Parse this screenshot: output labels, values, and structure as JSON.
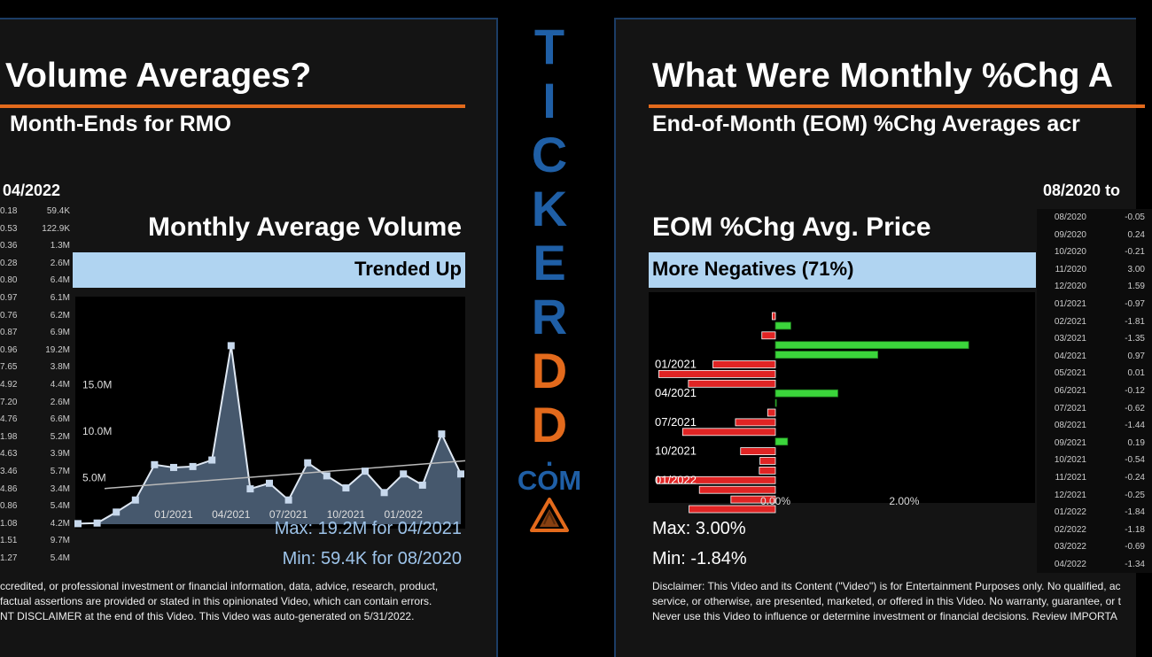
{
  "left": {
    "title": "Volume Averages?",
    "subtitle": "Month-Ends for RMO",
    "range_label": "04/2022",
    "chart_title": "Monthly Average Volume",
    "band_label": "Trended Up",
    "max_text": "Max: 19.2M for 04/2021",
    "min_text": "Min: 59.4K for 08/2020",
    "table": [
      [
        "0.18",
        "59.4K"
      ],
      [
        "0.53",
        "122.9K"
      ],
      [
        "0.36",
        "1.3M"
      ],
      [
        "0.28",
        "2.6M"
      ],
      [
        "0.80",
        "6.4M"
      ],
      [
        "0.97",
        "6.1M"
      ],
      [
        "0.76",
        "6.2M"
      ],
      [
        "0.87",
        "6.9M"
      ],
      [
        "0.96",
        "19.2M"
      ],
      [
        "7.65",
        "3.8M"
      ],
      [
        "4.92",
        "4.4M"
      ],
      [
        "7.20",
        "2.6M"
      ],
      [
        "4.76",
        "6.6M"
      ],
      [
        "1.98",
        "5.2M"
      ],
      [
        "4.63",
        "3.9M"
      ],
      [
        "3.46",
        "5.7M"
      ],
      [
        "4.86",
        "3.4M"
      ],
      [
        "0.86",
        "5.4M"
      ],
      [
        "1.08",
        "4.2M"
      ],
      [
        "1.51",
        "9.7M"
      ],
      [
        "1.27",
        "5.4M"
      ]
    ],
    "disclaimer": [
      "ccredited, or professional investment or financial information, data, advice, research, product,",
      "factual assertions are provided or stated in this opinionated Video, which can contain errors.",
      "NT DISCLAIMER at the end of this Video. This Video was auto-generated on 5/31/2022."
    ]
  },
  "right": {
    "title": "What Were Monthly %Chg A",
    "subtitle": "End-of-Month (EOM) %Chg Averages acr",
    "range_label": "08/2020 to",
    "chart_title": "EOM %Chg Avg. Price",
    "band_label": "More Negatives (71%)",
    "max_text": "Max: 3.00%",
    "min_text": "Min: -1.84%",
    "table": [
      [
        "08/2020",
        "-0.05"
      ],
      [
        "09/2020",
        "0.24"
      ],
      [
        "10/2020",
        "-0.21"
      ],
      [
        "11/2020",
        "3.00"
      ],
      [
        "12/2020",
        "1.59"
      ],
      [
        "01/2021",
        "-0.97"
      ],
      [
        "02/2021",
        "-1.81"
      ],
      [
        "03/2021",
        "-1.35"
      ],
      [
        "04/2021",
        "0.97"
      ],
      [
        "05/2021",
        "0.01"
      ],
      [
        "06/2021",
        "-0.12"
      ],
      [
        "07/2021",
        "-0.62"
      ],
      [
        "08/2021",
        "-1.44"
      ],
      [
        "09/2021",
        "0.19"
      ],
      [
        "10/2021",
        "-0.54"
      ],
      [
        "11/2021",
        "-0.24"
      ],
      [
        "12/2021",
        "-0.25"
      ],
      [
        "01/2022",
        "-1.84"
      ],
      [
        "02/2022",
        "-1.18"
      ],
      [
        "03/2022",
        "-0.69"
      ],
      [
        "04/2022",
        "-1.34"
      ]
    ],
    "disclaimer": [
      "Disclaimer: This Video and its Content (\"Video\") is for Entertainment Purposes only. No qualified, ac",
      "service, or otherwise, are presented, marketed, or offered in this Video. No warranty, guarantee, or t",
      "Never use this Video to influence or determine investment or financial decisions. Review IMPORTA"
    ]
  },
  "brand": {
    "letters": [
      "T",
      "I",
      "C",
      "K",
      "E",
      "R",
      "D",
      "D"
    ],
    "letter_colors": [
      "#1f5fa6",
      "#1f5fa6",
      "#1f5fa6",
      "#1f5fa6",
      "#1f5fa6",
      "#1f5fa6",
      "#e36a1c",
      "#e36a1c"
    ],
    "dot": ".",
    "com": "COM",
    "logo_icon": "warning-triangle-icon"
  },
  "colors": {
    "accent_orange": "#e36a1c",
    "brand_blue": "#1f5fa6",
    "band_blue": "#b0d4f1",
    "positive_bar": "#3bd53b",
    "negative_bar": "#e02424",
    "stat_text": "#9ec4ea"
  },
  "chart_data": [
    {
      "type": "area",
      "title": "Monthly Average Volume",
      "xlabel": "",
      "ylabel": "",
      "x": [
        "08/2020",
        "09/2020",
        "10/2020",
        "11/2020",
        "12/2020",
        "01/2021",
        "02/2021",
        "03/2021",
        "04/2021",
        "05/2021",
        "06/2021",
        "07/2021",
        "08/2021",
        "09/2021",
        "10/2021",
        "11/2021",
        "12/2021",
        "01/2022",
        "02/2022",
        "03/2022",
        "04/2022"
      ],
      "tick_labels": [
        "01/2021",
        "04/2021",
        "07/2021",
        "10/2021",
        "01/2022"
      ],
      "y_tick_labels": [
        "5.0M",
        "10.0M",
        "15.0M"
      ],
      "y_ticks": [
        5.0,
        10.0,
        15.0
      ],
      "values": [
        0.0594,
        0.1229,
        1.3,
        2.6,
        6.4,
        6.1,
        6.2,
        6.9,
        19.2,
        3.8,
        4.4,
        2.6,
        6.6,
        5.2,
        3.9,
        5.7,
        3.4,
        5.4,
        4.2,
        9.7,
        5.4
      ],
      "unit": "M",
      "ylim": [
        0,
        20
      ],
      "trendline": true,
      "grid": false
    },
    {
      "type": "bar",
      "orientation": "horizontal",
      "title": "EOM %Chg Avg. Price",
      "categories": [
        "08/2020",
        "09/2020",
        "10/2020",
        "11/2020",
        "12/2020",
        "01/2021",
        "02/2021",
        "03/2021",
        "04/2021",
        "05/2021",
        "06/2021",
        "07/2021",
        "08/2021",
        "09/2021",
        "10/2021",
        "11/2021",
        "12/2021",
        "01/2022",
        "02/2022",
        "03/2022",
        "04/2022"
      ],
      "tick_labels": [
        "01/2021",
        "04/2021",
        "07/2021",
        "10/2021",
        "01/2022"
      ],
      "values": [
        -0.05,
        0.24,
        -0.21,
        3.0,
        1.59,
        -0.97,
        -1.81,
        -1.35,
        0.97,
        0.01,
        -0.12,
        -0.62,
        -1.44,
        0.19,
        -0.54,
        -0.24,
        -0.25,
        -1.84,
        -1.18,
        -0.69,
        -1.34
      ],
      "x_tick_labels": [
        "0.00%",
        "2.00%"
      ],
      "x_ticks": [
        0,
        2
      ],
      "xlim": [
        -1.84,
        3.8
      ],
      "grid": false
    }
  ]
}
